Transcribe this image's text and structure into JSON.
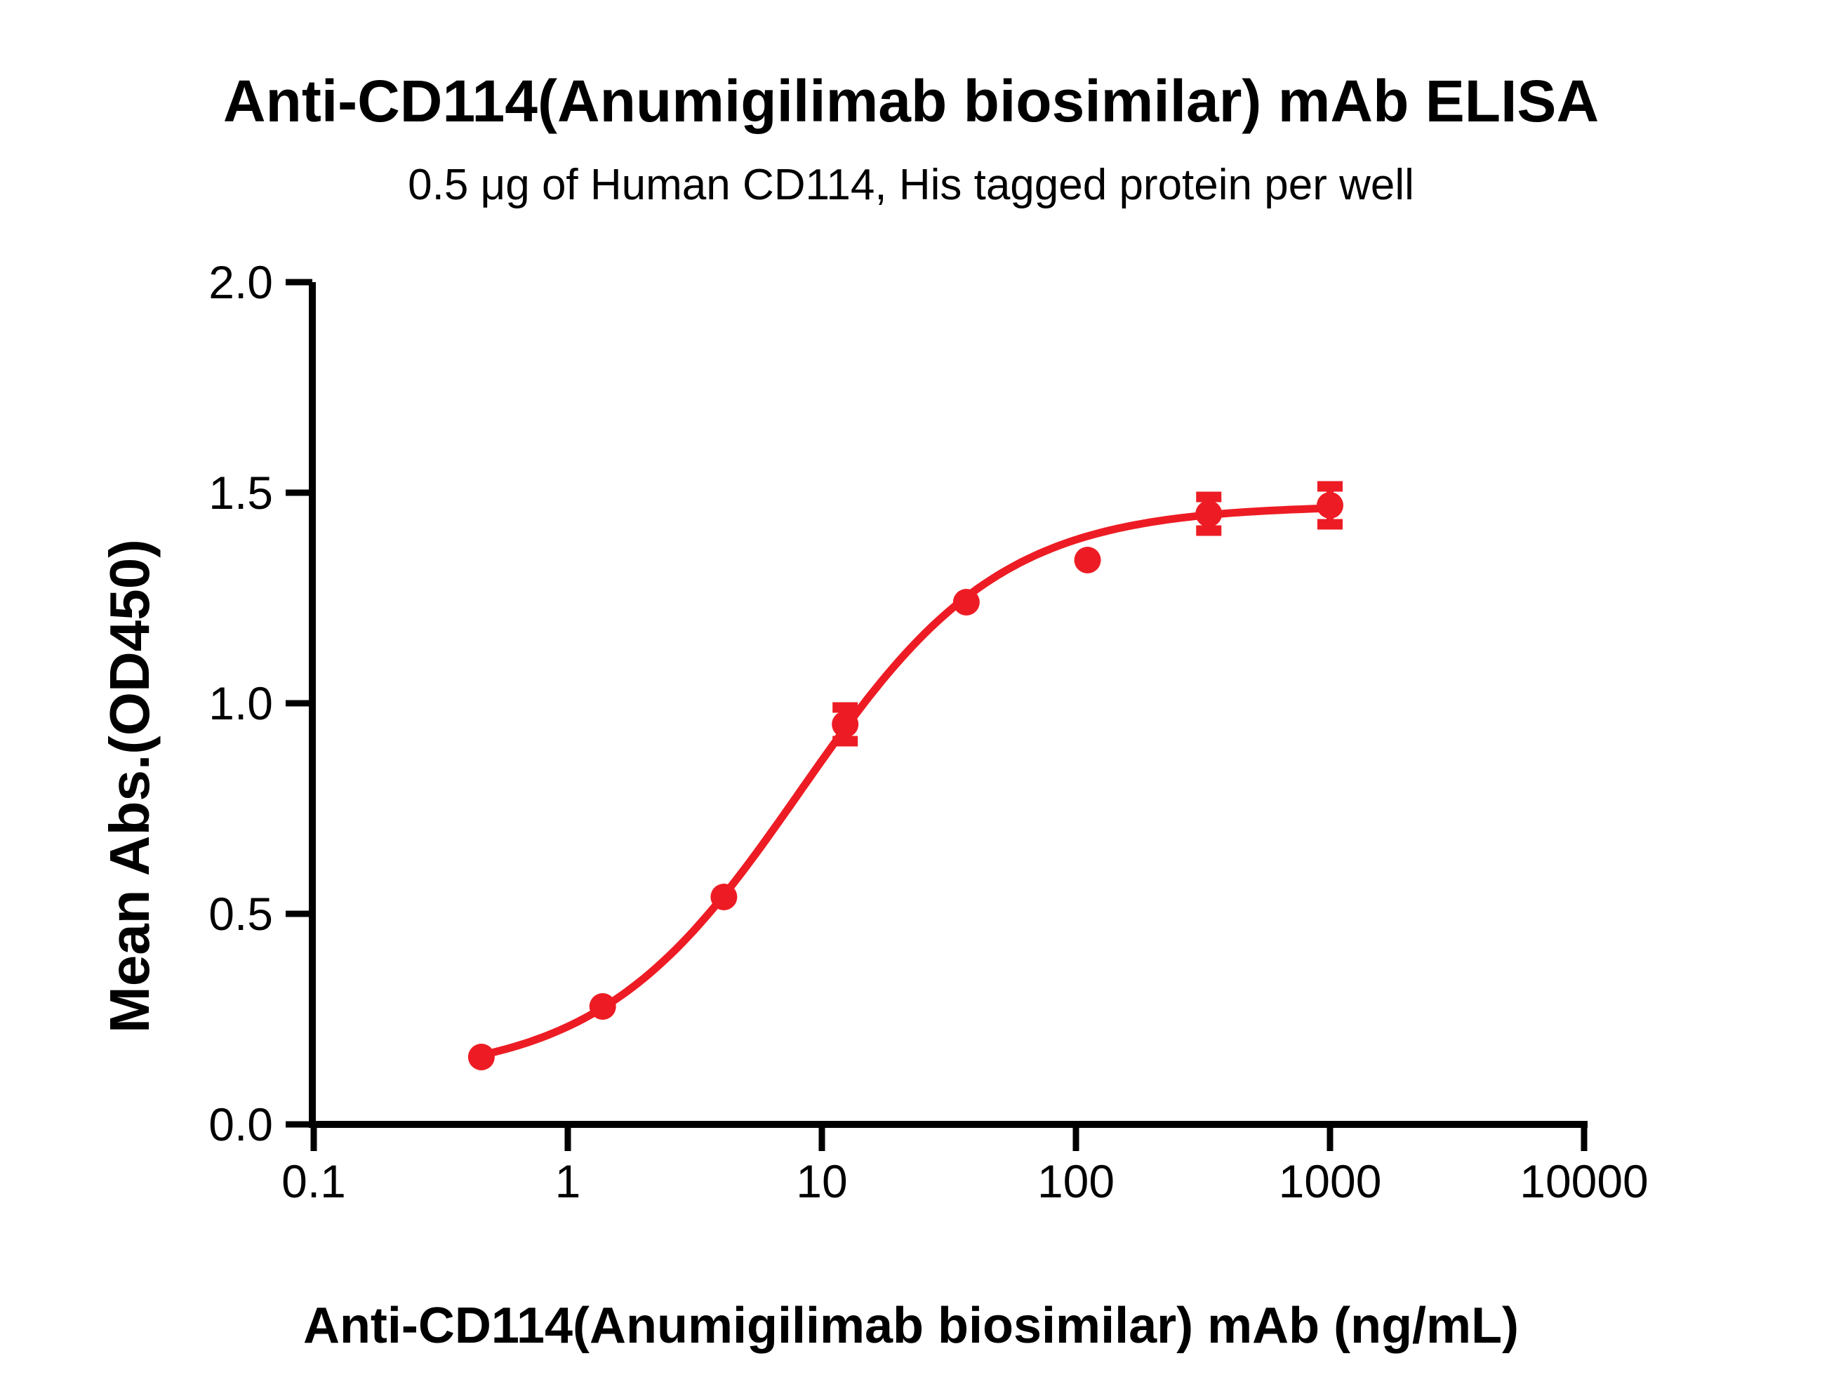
{
  "chart_data": {
    "type": "scatter",
    "title": "Anti-CD114(Anumigilimab biosimilar) mAb ELISA",
    "subtitle": "0.5 μg of Human CD114, His tagged protein per well",
    "xlabel": "Anti-CD114(Anumigilimab biosimilar) mAb (ng/mL)",
    "ylabel": "Mean Abs.(OD450)",
    "x_scale": "log10",
    "xlim": [
      0.1,
      10000
    ],
    "ylim": [
      0.0,
      2.0
    ],
    "x_ticks": [
      0.1,
      1,
      10,
      100,
      1000,
      10000
    ],
    "x_tick_labels": [
      "0.1",
      "1",
      "10",
      "100",
      "1000",
      "10000"
    ],
    "y_ticks": [
      0.0,
      0.5,
      1.0,
      1.5,
      2.0
    ],
    "y_tick_labels": [
      "0.0",
      "0.5",
      "1.0",
      "1.5",
      "2.0"
    ],
    "grid": false,
    "legend": "none",
    "series": [
      {
        "name": "Anti-CD114(Anumigilimab biosimilar) mAb",
        "marker": "circle",
        "color": "#ed1c24",
        "points": [
          {
            "x": 0.457,
            "y": 0.16,
            "err": 0
          },
          {
            "x": 1.372,
            "y": 0.28,
            "err": 0
          },
          {
            "x": 4.115,
            "y": 0.54,
            "err": 0
          },
          {
            "x": 12.35,
            "y": 0.95,
            "err": 0.04
          },
          {
            "x": 37.04,
            "y": 1.24,
            "err": 0
          },
          {
            "x": 111.1,
            "y": 1.34,
            "err": 0
          },
          {
            "x": 333.3,
            "y": 1.45,
            "err": 0.04
          },
          {
            "x": 1000,
            "y": 1.47,
            "err": 0.045
          }
        ],
        "fit": {
          "model": "4PL",
          "bottom": 0.11,
          "top": 1.47,
          "ec50": 8.2,
          "hill": 1.1
        }
      }
    ]
  },
  "colors": {
    "curve": "#ed1c24",
    "axis": "#000000",
    "background": "#ffffff"
  }
}
